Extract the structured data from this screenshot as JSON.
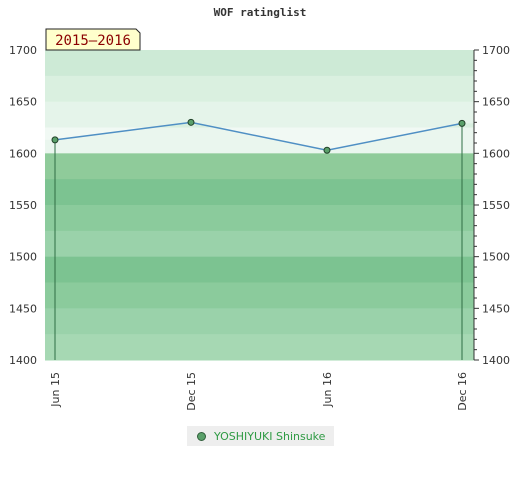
{
  "chart_data": {
    "type": "line",
    "title": "WOF ratinglist",
    "period_label": "2015–2016",
    "x": [
      "Jun 15",
      "Dec 15",
      "Jun 16",
      "Dec 16"
    ],
    "series": [
      {
        "name": "YOSHIYUKI Shinsuke",
        "values": [
          1613,
          1630,
          1603,
          1629
        ]
      }
    ],
    "ylim": [
      1400,
      1700
    ],
    "y_ticks": [
      1400,
      1450,
      1500,
      1550,
      1600,
      1650,
      1700
    ],
    "grid": true,
    "legend_position": "bottom",
    "colors": {
      "line": "#4f8fc4",
      "marker": "#5aa06a",
      "area": "#8fcb9a",
      "band_light": "#b3dfc0",
      "band_dark": "#7cc391",
      "label_box": "#ffffcc",
      "label_text": "#8b0000"
    }
  }
}
